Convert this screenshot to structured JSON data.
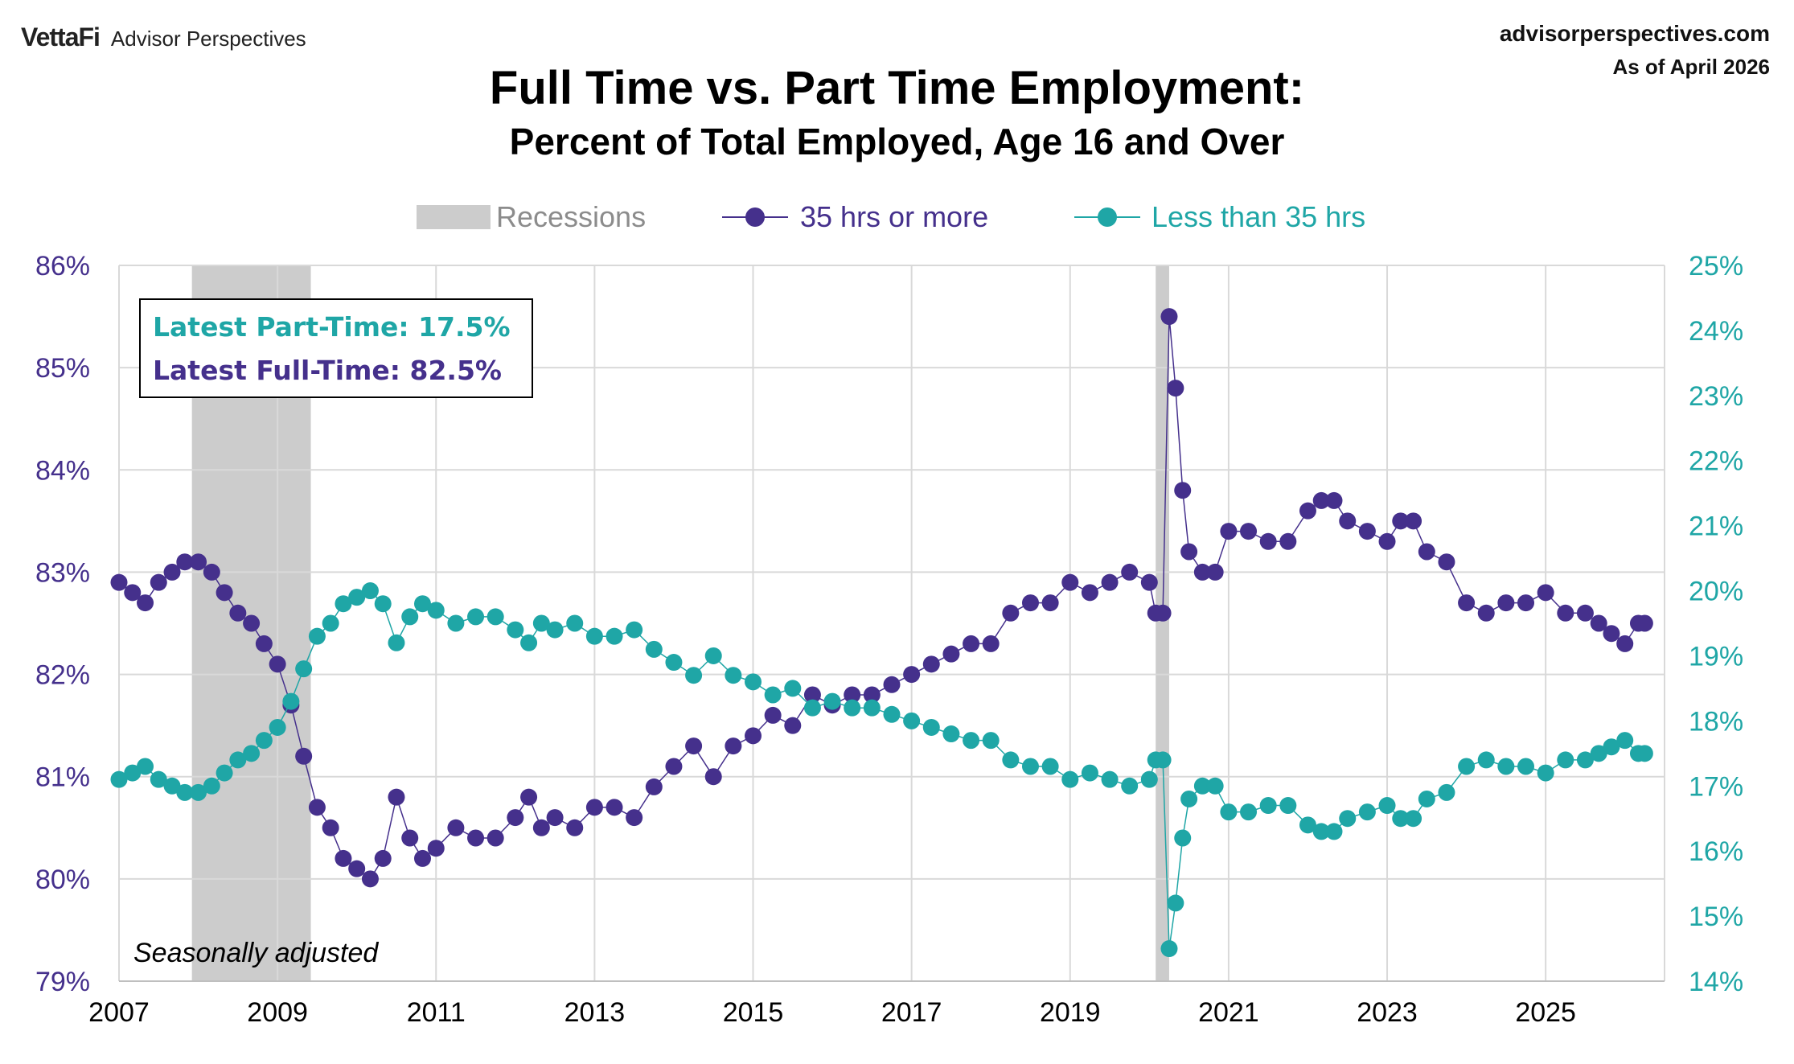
{
  "header": {
    "brand": "VettaFi",
    "brand_sub": "Advisor Perspectives",
    "site": "advisorperspectives.com",
    "as_of": "As of April 2026"
  },
  "title": "Full Time vs. Part Time Employment:",
  "subtitle": "Percent of Total Employed, Age 16 and Over",
  "legend": {
    "recessions": "Recessions",
    "full_time": "35 hrs or more",
    "part_time": "Less than 35 hrs"
  },
  "annotations": {
    "latest_part_time": "Latest Part-Time: 17.5%",
    "latest_full_time": "Latest Full-Time: 82.5%",
    "note": "Seasonally adjusted"
  },
  "colors": {
    "full_time": "#45308c",
    "part_time": "#1fa6a6",
    "recession": "#cccccc",
    "grid": "#d9d9d9"
  },
  "chart_data": {
    "type": "line",
    "x_range": [
      2007,
      2026.5
    ],
    "y_left": {
      "min": 79,
      "max": 86,
      "ticks": [
        "79%",
        "80%",
        "81%",
        "82%",
        "83%",
        "84%",
        "85%",
        "86%"
      ]
    },
    "y_right": {
      "min": 14,
      "max": 25,
      "ticks": [
        "14%",
        "15%",
        "16%",
        "17%",
        "18%",
        "19%",
        "20%",
        "21%",
        "22%",
        "23%",
        "24%",
        "25%"
      ]
    },
    "x_ticks": [
      "2007",
      "2009",
      "2011",
      "2013",
      "2015",
      "2017",
      "2019",
      "2021",
      "2023",
      "2025"
    ],
    "grid": true,
    "legend_position": "top",
    "recessions": [
      [
        2007.92,
        2009.42
      ],
      [
        2020.08,
        2020.25
      ]
    ],
    "series": [
      {
        "name": "35 hrs or more",
        "axis": "left",
        "x": [
          2007.0,
          2007.17,
          2007.33,
          2007.5,
          2007.67,
          2007.83,
          2008.0,
          2008.17,
          2008.33,
          2008.5,
          2008.67,
          2008.83,
          2009.0,
          2009.17,
          2009.33,
          2009.5,
          2009.67,
          2009.83,
          2010.0,
          2010.17,
          2010.33,
          2010.5,
          2010.67,
          2010.83,
          2011.0,
          2011.25,
          2011.5,
          2011.75,
          2012.0,
          2012.17,
          2012.33,
          2012.5,
          2012.75,
          2013.0,
          2013.25,
          2013.5,
          2013.75,
          2014.0,
          2014.25,
          2014.5,
          2014.75,
          2015.0,
          2015.25,
          2015.5,
          2015.75,
          2016.0,
          2016.25,
          2016.5,
          2016.75,
          2017.0,
          2017.25,
          2017.5,
          2017.75,
          2018.0,
          2018.25,
          2018.5,
          2018.75,
          2019.0,
          2019.25,
          2019.5,
          2019.75,
          2020.0,
          2020.08,
          2020.17,
          2020.25,
          2020.33,
          2020.42,
          2020.5,
          2020.67,
          2020.83,
          2021.0,
          2021.25,
          2021.5,
          2021.75,
          2022.0,
          2022.17,
          2022.33,
          2022.5,
          2022.75,
          2023.0,
          2023.17,
          2023.33,
          2023.5,
          2023.75,
          2024.0,
          2024.25,
          2024.5,
          2024.75,
          2025.0,
          2025.25,
          2025.5,
          2025.67,
          2025.83,
          2026.0,
          2026.17,
          2026.25
        ],
        "y": [
          82.9,
          82.8,
          82.7,
          82.9,
          83.0,
          83.1,
          83.1,
          83.0,
          82.8,
          82.6,
          82.5,
          82.3,
          82.1,
          81.7,
          81.2,
          80.7,
          80.5,
          80.2,
          80.1,
          80.0,
          80.2,
          80.8,
          80.4,
          80.2,
          80.3,
          80.5,
          80.4,
          80.4,
          80.6,
          80.8,
          80.5,
          80.6,
          80.5,
          80.7,
          80.7,
          80.6,
          80.9,
          81.1,
          81.3,
          81.0,
          81.3,
          81.4,
          81.6,
          81.5,
          81.8,
          81.7,
          81.8,
          81.8,
          81.9,
          82.0,
          82.1,
          82.2,
          82.3,
          82.3,
          82.6,
          82.7,
          82.7,
          82.9,
          82.8,
          82.9,
          83.0,
          82.9,
          82.6,
          82.6,
          85.5,
          84.8,
          83.8,
          83.2,
          83.0,
          83.0,
          83.4,
          83.4,
          83.3,
          83.3,
          83.6,
          83.7,
          83.7,
          83.5,
          83.4,
          83.3,
          83.5,
          83.5,
          83.2,
          83.1,
          82.7,
          82.6,
          82.7,
          82.7,
          82.8,
          82.6,
          82.6,
          82.5,
          82.4,
          82.3,
          82.5,
          82.5
        ]
      },
      {
        "name": "Less than 35 hrs",
        "axis": "right",
        "x": [
          2007.0,
          2007.17,
          2007.33,
          2007.5,
          2007.67,
          2007.83,
          2008.0,
          2008.17,
          2008.33,
          2008.5,
          2008.67,
          2008.83,
          2009.0,
          2009.17,
          2009.33,
          2009.5,
          2009.67,
          2009.83,
          2010.0,
          2010.17,
          2010.33,
          2010.5,
          2010.67,
          2010.83,
          2011.0,
          2011.25,
          2011.5,
          2011.75,
          2012.0,
          2012.17,
          2012.33,
          2012.5,
          2012.75,
          2013.0,
          2013.25,
          2013.5,
          2013.75,
          2014.0,
          2014.25,
          2014.5,
          2014.75,
          2015.0,
          2015.25,
          2015.5,
          2015.75,
          2016.0,
          2016.25,
          2016.5,
          2016.75,
          2017.0,
          2017.25,
          2017.5,
          2017.75,
          2018.0,
          2018.25,
          2018.5,
          2018.75,
          2019.0,
          2019.25,
          2019.5,
          2019.75,
          2020.0,
          2020.08,
          2020.17,
          2020.25,
          2020.33,
          2020.42,
          2020.5,
          2020.67,
          2020.83,
          2021.0,
          2021.25,
          2021.5,
          2021.75,
          2022.0,
          2022.17,
          2022.33,
          2022.5,
          2022.75,
          2023.0,
          2023.17,
          2023.33,
          2023.5,
          2023.75,
          2024.0,
          2024.25,
          2024.5,
          2024.75,
          2025.0,
          2025.25,
          2025.5,
          2025.67,
          2025.83,
          2026.0,
          2026.17,
          2026.25
        ],
        "y": [
          17.1,
          17.2,
          17.3,
          17.1,
          17.0,
          16.9,
          16.9,
          17.0,
          17.2,
          17.4,
          17.5,
          17.7,
          17.9,
          18.3,
          18.8,
          19.3,
          19.5,
          19.8,
          19.9,
          20.0,
          19.8,
          19.2,
          19.6,
          19.8,
          19.7,
          19.5,
          19.6,
          19.6,
          19.4,
          19.2,
          19.5,
          19.4,
          19.5,
          19.3,
          19.3,
          19.4,
          19.1,
          18.9,
          18.7,
          19.0,
          18.7,
          18.6,
          18.4,
          18.5,
          18.2,
          18.3,
          18.2,
          18.2,
          18.1,
          18.0,
          17.9,
          17.8,
          17.7,
          17.7,
          17.4,
          17.3,
          17.3,
          17.1,
          17.2,
          17.1,
          17.0,
          17.1,
          17.4,
          17.4,
          14.5,
          15.2,
          16.2,
          16.8,
          17.0,
          17.0,
          16.6,
          16.6,
          16.7,
          16.7,
          16.4,
          16.3,
          16.3,
          16.5,
          16.6,
          16.7,
          16.5,
          16.5,
          16.8,
          16.9,
          17.3,
          17.4,
          17.3,
          17.3,
          17.2,
          17.4,
          17.4,
          17.5,
          17.6,
          17.7,
          17.5,
          17.5
        ]
      }
    ]
  }
}
